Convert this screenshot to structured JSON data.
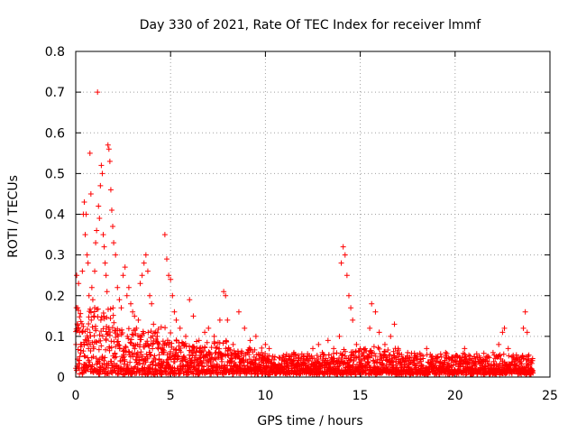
{
  "chart_data": {
    "type": "scatter",
    "title": "Day 330 of 2021, Rate Of TEC Index for receiver lmmf",
    "xlabel": "GPS time / hours",
    "ylabel": "ROTI / TECUs",
    "xlim": [
      0,
      25
    ],
    "ylim": [
      0,
      0.8
    ],
    "xticks": [
      "0",
      "5",
      "10",
      "15",
      "20",
      "25"
    ],
    "yticks": [
      "0",
      "0.1",
      "0.2",
      "0.3",
      "0.4",
      "0.5",
      "0.6",
      "0.7",
      "0.8"
    ],
    "grid": true,
    "marker": "plus",
    "color": "#ff0000",
    "series": [
      {
        "points": [
          [
            0.05,
            0.25
          ],
          [
            0.1,
            0.17
          ],
          [
            0.15,
            0.23
          ],
          [
            0.2,
            0.11
          ],
          [
            0.3,
            0.08
          ],
          [
            0.35,
            0.26
          ],
          [
            0.4,
            0.4
          ],
          [
            0.45,
            0.43
          ],
          [
            0.5,
            0.35
          ],
          [
            0.55,
            0.4
          ],
          [
            0.6,
            0.3
          ],
          [
            0.65,
            0.28
          ],
          [
            0.7,
            0.2
          ],
          [
            0.75,
            0.55
          ],
          [
            0.8,
            0.45
          ],
          [
            0.85,
            0.22
          ],
          [
            0.9,
            0.19
          ],
          [
            0.95,
            0.15
          ],
          [
            1.0,
            0.26
          ],
          [
            1.05,
            0.33
          ],
          [
            1.1,
            0.36
          ],
          [
            1.15,
            0.7
          ],
          [
            1.2,
            0.42
          ],
          [
            1.25,
            0.39
          ],
          [
            1.3,
            0.47
          ],
          [
            1.35,
            0.52
          ],
          [
            1.4,
            0.5
          ],
          [
            1.45,
            0.35
          ],
          [
            1.5,
            0.32
          ],
          [
            1.55,
            0.28
          ],
          [
            1.6,
            0.25
          ],
          [
            1.65,
            0.21
          ],
          [
            1.7,
            0.57
          ],
          [
            1.75,
            0.56
          ],
          [
            1.8,
            0.53
          ],
          [
            1.85,
            0.46
          ],
          [
            1.9,
            0.41
          ],
          [
            1.95,
            0.37
          ],
          [
            2.0,
            0.33
          ],
          [
            2.1,
            0.3
          ],
          [
            2.2,
            0.22
          ],
          [
            2.3,
            0.19
          ],
          [
            2.4,
            0.17
          ],
          [
            2.5,
            0.25
          ],
          [
            2.6,
            0.27
          ],
          [
            2.7,
            0.2
          ],
          [
            2.8,
            0.22
          ],
          [
            2.9,
            0.18
          ],
          [
            3.0,
            0.16
          ],
          [
            3.1,
            0.15
          ],
          [
            3.2,
            0.12
          ],
          [
            3.3,
            0.14
          ],
          [
            3.4,
            0.23
          ],
          [
            3.5,
            0.25
          ],
          [
            3.6,
            0.28
          ],
          [
            3.7,
            0.3
          ],
          [
            3.8,
            0.26
          ],
          [
            3.9,
            0.2
          ],
          [
            4.0,
            0.18
          ],
          [
            4.1,
            0.13
          ],
          [
            4.2,
            0.11
          ],
          [
            4.3,
            0.1
          ],
          [
            4.4,
            0.08
          ],
          [
            4.5,
            0.07
          ],
          [
            4.6,
            0.06
          ],
          [
            4.7,
            0.35
          ],
          [
            4.8,
            0.29
          ],
          [
            4.9,
            0.25
          ],
          [
            5.0,
            0.24
          ],
          [
            5.1,
            0.2
          ],
          [
            5.2,
            0.16
          ],
          [
            5.3,
            0.14
          ],
          [
            5.5,
            0.12
          ],
          [
            5.8,
            0.1
          ],
          [
            6.0,
            0.19
          ],
          [
            6.2,
            0.15
          ],
          [
            6.5,
            0.09
          ],
          [
            6.8,
            0.11
          ],
          [
            7.0,
            0.12
          ],
          [
            7.3,
            0.1
          ],
          [
            7.6,
            0.14
          ],
          [
            7.8,
            0.21
          ],
          [
            7.9,
            0.2
          ],
          [
            8.0,
            0.14
          ],
          [
            8.3,
            0.08
          ],
          [
            8.6,
            0.16
          ],
          [
            8.9,
            0.12
          ],
          [
            9.2,
            0.09
          ],
          [
            9.5,
            0.1
          ],
          [
            9.8,
            0.06
          ],
          [
            10.0,
            0.08
          ],
          [
            10.2,
            0.07
          ],
          [
            10.5,
            0.05
          ],
          [
            11.0,
            0.04
          ],
          [
            11.5,
            0.06
          ],
          [
            12.0,
            0.05
          ],
          [
            12.5,
            0.07
          ],
          [
            12.8,
            0.08
          ],
          [
            13.0,
            0.06
          ],
          [
            13.3,
            0.09
          ],
          [
            13.6,
            0.07
          ],
          [
            13.9,
            0.1
          ],
          [
            14.0,
            0.28
          ],
          [
            14.1,
            0.32
          ],
          [
            14.2,
            0.3
          ],
          [
            14.3,
            0.25
          ],
          [
            14.4,
            0.2
          ],
          [
            14.5,
            0.17
          ],
          [
            14.6,
            0.14
          ],
          [
            14.8,
            0.08
          ],
          [
            15.0,
            0.07
          ],
          [
            15.2,
            0.06
          ],
          [
            15.5,
            0.12
          ],
          [
            15.6,
            0.18
          ],
          [
            15.8,
            0.16
          ],
          [
            16.0,
            0.11
          ],
          [
            16.3,
            0.08
          ],
          [
            16.6,
            0.1
          ],
          [
            16.8,
            0.13
          ],
          [
            17.0,
            0.07
          ],
          [
            17.5,
            0.06
          ],
          [
            18.0,
            0.05
          ],
          [
            18.5,
            0.07
          ],
          [
            19.0,
            0.05
          ],
          [
            19.5,
            0.06
          ],
          [
            20.0,
            0.04
          ],
          [
            20.5,
            0.07
          ],
          [
            21.0,
            0.05
          ],
          [
            21.5,
            0.04
          ],
          [
            22.0,
            0.06
          ],
          [
            22.3,
            0.08
          ],
          [
            22.5,
            0.11
          ],
          [
            22.6,
            0.12
          ],
          [
            22.8,
            0.07
          ],
          [
            23.0,
            0.05
          ],
          [
            23.3,
            0.04
          ],
          [
            23.6,
            0.12
          ],
          [
            23.7,
            0.16
          ],
          [
            23.8,
            0.11
          ],
          [
            23.9,
            0.04
          ],
          [
            24.0,
            0.02
          ]
        ]
      }
    ],
    "envelope_notes": "Dense cluster of points from 0 to ~24 h mostly below 0.1 TECUs"
  }
}
